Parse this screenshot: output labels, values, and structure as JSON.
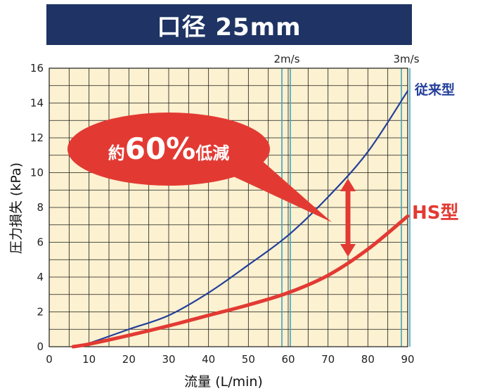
{
  "chart_data": {
    "type": "line",
    "title": "口径 25mm",
    "xlabel": "流量 (L/min)",
    "ylabel": "圧力損失 (kPa)",
    "xlim": [
      0,
      90
    ],
    "ylim": [
      0,
      16
    ],
    "x_ticks": [
      "0",
      "10",
      "20",
      "30",
      "40",
      "50",
      "60",
      "70",
      "80",
      "90"
    ],
    "y_ticks": [
      "0",
      "2",
      "4",
      "6",
      "8",
      "10",
      "12",
      "14",
      "16"
    ],
    "grid": true,
    "reference_lines": [
      {
        "label": "2m/s",
        "x": 60
      },
      {
        "label": "3m/s",
        "x": 90
      }
    ],
    "series": [
      {
        "name": "従来型",
        "color": "#233f9a",
        "x": [
          6,
          10,
          20,
          30,
          40,
          50,
          60,
          70,
          80,
          90
        ],
        "y": [
          0.0,
          0.2,
          1.0,
          1.8,
          3.1,
          4.7,
          6.4,
          8.6,
          11.2,
          14.7
        ]
      },
      {
        "name": "HS型",
        "color": "#e23a33",
        "x": [
          6,
          10,
          20,
          30,
          40,
          50,
          60,
          70,
          80,
          90
        ],
        "y": [
          0.0,
          0.15,
          0.65,
          1.2,
          1.8,
          2.4,
          3.1,
          4.1,
          5.6,
          7.5
        ]
      }
    ],
    "annotations": [
      {
        "text_prefix": "約",
        "text_main": "60%",
        "text_suffix": "低減",
        "points_to_x": 75
      }
    ]
  },
  "colors": {
    "title_bg": "#1f3464",
    "plot_bg": "#fcf1d0",
    "grid": "#1a1a1a",
    "reference_line": "#3ea6b8",
    "callout": "#e23a33",
    "arrow": "#e23a33"
  }
}
